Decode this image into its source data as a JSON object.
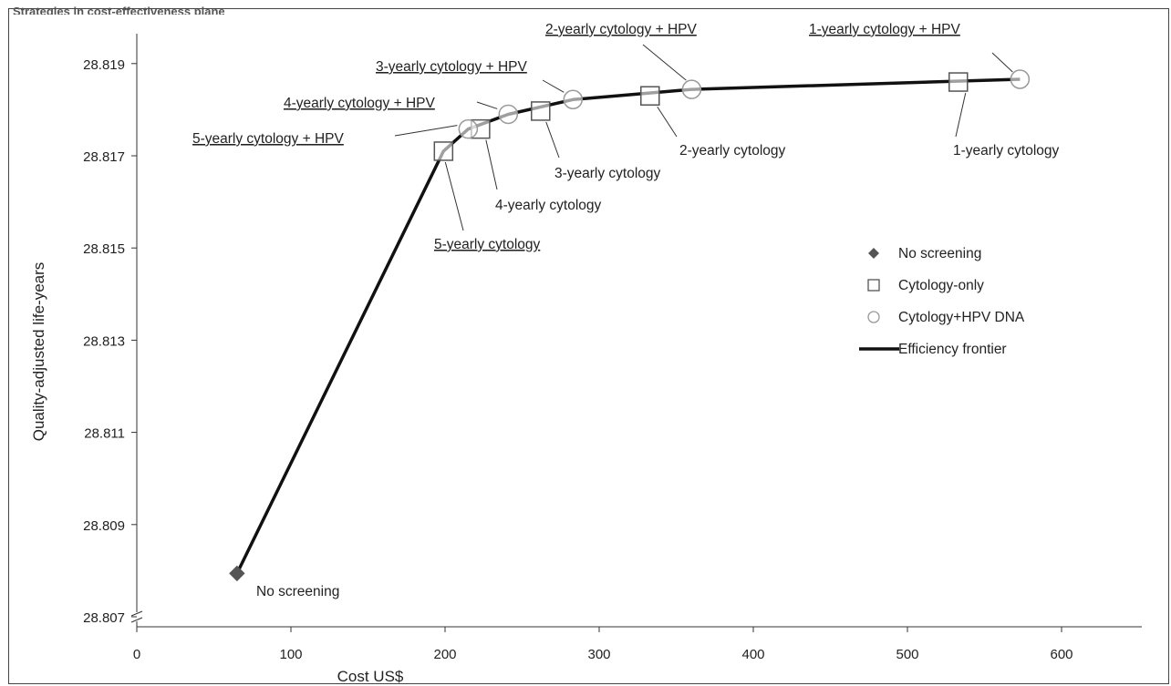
{
  "chart_data": {
    "type": "scatter",
    "partial_title": "Strategies in cost-effectiveness plane",
    "xlabel": "Cost US$",
    "ylabel": "Quality-adjusted life-years",
    "xlim": [
      0,
      650
    ],
    "ylim": [
      28.807,
      28.8199
    ],
    "x_ticks": [
      "0",
      "100",
      "200",
      "300",
      "400",
      "500",
      "600"
    ],
    "y_ticks": [
      "28.807",
      "28.809",
      "28.811",
      "28.813",
      "28.815",
      "28.817",
      "28.819"
    ],
    "grid": false,
    "legend_position": "right",
    "legend": [
      {
        "label": "No screening",
        "marker": "diamond",
        "color": "#555555"
      },
      {
        "label": "Cytology-only",
        "marker": "square",
        "color": "#555555"
      },
      {
        "label": "Cytology+HPV DNA",
        "marker": "circle",
        "color": "#999999"
      },
      {
        "label": "Efficiency frontier",
        "marker": "line",
        "color": "#111111"
      }
    ],
    "series": [
      {
        "name": "No screening",
        "marker": "diamond",
        "points": [
          {
            "x": 65,
            "y": 28.80794,
            "label": "No screening"
          }
        ]
      },
      {
        "name": "Cytology-only",
        "marker": "square",
        "points": [
          {
            "x": 199,
            "y": 28.8171,
            "label": "5-yearly cytology",
            "underline": true
          },
          {
            "x": 223,
            "y": 28.81758,
            "label": "4-yearly cytology"
          },
          {
            "x": 262,
            "y": 28.81797,
            "label": "3-yearly cytology"
          },
          {
            "x": 333,
            "y": 28.8183,
            "label": "2-yearly cytology"
          },
          {
            "x": 533,
            "y": 28.8186,
            "label": "1-yearly cytology"
          }
        ]
      },
      {
        "name": "Cytology+HPV DNA",
        "marker": "circle",
        "points": [
          {
            "x": 215,
            "y": 28.81758,
            "label": "5-yearly cytology + HPV",
            "underline": true
          },
          {
            "x": 241,
            "y": 28.8179,
            "label": "4-yearly cytology + HPV",
            "underline": true
          },
          {
            "x": 283,
            "y": 28.81822,
            "label": "3-yearly cytology + HPV",
            "underline": true
          },
          {
            "x": 360,
            "y": 28.81844,
            "label": "2-yearly cytology + HPV",
            "underline": true
          },
          {
            "x": 573,
            "y": 28.81866,
            "label": "1-yearly cytology + HPV",
            "underline": true
          }
        ]
      },
      {
        "name": "Efficiency frontier",
        "line": true,
        "points": [
          {
            "x": 65,
            "y": 28.80794
          },
          {
            "x": 199,
            "y": 28.8171
          },
          {
            "x": 215,
            "y": 28.81758
          },
          {
            "x": 241,
            "y": 28.8179
          },
          {
            "x": 283,
            "y": 28.81822
          },
          {
            "x": 360,
            "y": 28.81844
          },
          {
            "x": 573,
            "y": 28.81866
          }
        ]
      }
    ]
  }
}
